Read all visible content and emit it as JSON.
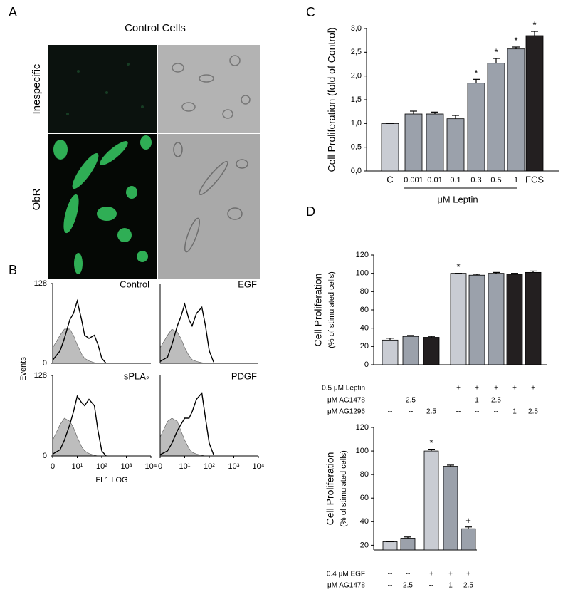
{
  "panel_a": {
    "label": "A",
    "title": "Control Cells",
    "rows": [
      "Inespecific",
      "ObR"
    ]
  },
  "panel_b": {
    "label": "B",
    "y_label": "Events",
    "x_label": "FL1 LOG"
  },
  "chart_data": [
    {
      "type": "bar",
      "panel": "C",
      "y_label": "Cell Proliferation (fold of Control)",
      "categories": [
        "C",
        "0.001",
        "0.01",
        "0.1",
        "0.3",
        "0.5",
        "1",
        "FCS"
      ],
      "values": [
        1.0,
        1.2,
        1.2,
        1.1,
        1.85,
        2.27,
        2.57,
        2.85
      ],
      "errors": [
        0,
        0.06,
        0.04,
        0.07,
        0.08,
        0.1,
        0.04,
        0.09
      ],
      "colors": [
        "#c9ccd3",
        "#9ba1ab",
        "#9ba1ab",
        "#9ba1ab",
        "#9ba1ab",
        "#9ba1ab",
        "#9ba1ab",
        "#231f20"
      ],
      "markers": [
        null,
        null,
        null,
        null,
        "*",
        "*",
        "*",
        "*"
      ],
      "group_label": "μM Leptin",
      "ylim": [
        0,
        3
      ],
      "yticks": [
        {
          "value": 0,
          "label": "0,0"
        },
        {
          "value": 0.5,
          "label": "0,5"
        },
        {
          "value": 1,
          "label": "1,0"
        },
        {
          "value": 1.5,
          "label": "1,5"
        },
        {
          "value": 2,
          "label": "2,0"
        },
        {
          "value": 2.5,
          "label": "2,5"
        },
        {
          "value": 3,
          "label": "3,0"
        }
      ]
    },
    {
      "type": "bar",
      "panel": "D",
      "y_label": "Cell Proliferation",
      "y_sublabel": "(% of stimulated cells)",
      "categories": [
        null,
        null,
        null,
        null,
        null,
        null,
        null,
        null
      ],
      "values": [
        27,
        31,
        30,
        100,
        98,
        100,
        99,
        101
      ],
      "errors": [
        2,
        1,
        1,
        0,
        1,
        1,
        1,
        1.5
      ],
      "colors": [
        "#c9ccd3",
        "#9ba1ab",
        "#231f20",
        "#c9ccd3",
        "#9ba1ab",
        "#9ba1ab",
        "#231f20",
        "#231f20"
      ],
      "markers": [
        null,
        null,
        null,
        "*",
        null,
        null,
        null,
        null
      ],
      "conditions": [
        {
          "label": "0.5 μM Leptin",
          "values": [
            "--",
            "--",
            "--",
            "+",
            "+",
            "+",
            "+",
            "+"
          ]
        },
        {
          "label": "μM AG1478",
          "values": [
            "--",
            "2.5",
            "--",
            "--",
            "1",
            "2.5",
            "--",
            "--"
          ]
        },
        {
          "label": "μM AG1296",
          "values": [
            "--",
            "--",
            "2.5",
            "--",
            "--",
            "--",
            "1",
            "2.5"
          ]
        }
      ],
      "ylim": [
        0,
        120
      ],
      "yticks": [
        0,
        20,
        40,
        60,
        80,
        100,
        120
      ]
    },
    {
      "type": "bar",
      "y_label": "Cell Proliferation",
      "y_sublabel": "(% of stimulated cells)",
      "categories": [
        null,
        null,
        null,
        null,
        null
      ],
      "values": [
        23,
        26,
        100,
        87,
        34
      ],
      "errors": [
        0,
        1,
        1.5,
        1,
        1.5
      ],
      "colors": [
        "#c9ccd3",
        "#9ba1ab",
        "#c9ccd3",
        "#9ba1ab",
        "#9ba1ab"
      ],
      "markers": [
        null,
        null,
        "*",
        null,
        "+"
      ],
      "conditions": [
        {
          "label": "0.4 μM EGF",
          "values": [
            "--",
            "--",
            "+",
            "+",
            "+"
          ]
        },
        {
          "label": "μM AG1478",
          "values": [
            "--",
            "2.5",
            "--",
            "1",
            "2.5"
          ]
        }
      ],
      "ylim": [
        16,
        120
      ],
      "yticks": [
        20,
        40,
        60,
        80,
        100,
        120
      ]
    },
    {
      "type": "line",
      "title": "Control",
      "log_x": true,
      "xlim": [
        1,
        10000
      ],
      "ylim": [
        0,
        128
      ],
      "yticks": [
        0,
        128
      ],
      "x": [
        1,
        2,
        3,
        5,
        7,
        10,
        15,
        20,
        30,
        50,
        70,
        100,
        150
      ],
      "series": [
        {
          "color": "#bdbdbd",
          "filled": true,
          "values": [
            25,
            45,
            55,
            55,
            45,
            30,
            15,
            8,
            4,
            1,
            0,
            0,
            0
          ]
        },
        {
          "color": "#000000",
          "values": [
            5,
            20,
            40,
            70,
            80,
            100,
            70,
            45,
            40,
            45,
            30,
            8,
            0
          ]
        }
      ]
    },
    {
      "type": "line",
      "title": "EGF",
      "log_x": true,
      "xlim": [
        1,
        10000
      ],
      "ylim": [
        0,
        128
      ],
      "x": [
        1,
        2,
        3,
        5,
        7,
        10,
        15,
        20,
        30,
        50,
        70,
        100,
        150
      ],
      "series": [
        {
          "color": "#bdbdbd",
          "filled": true,
          "values": [
            25,
            45,
            55,
            50,
            40,
            25,
            12,
            6,
            3,
            1,
            0,
            0,
            0
          ]
        },
        {
          "color": "#000000",
          "values": [
            3,
            10,
            30,
            60,
            75,
            95,
            70,
            60,
            80,
            90,
            60,
            20,
            2
          ]
        }
      ]
    },
    {
      "type": "line",
      "title": "sPLA₂",
      "log_x": true,
      "xlim": [
        1,
        10000
      ],
      "ylim": [
        0,
        128
      ],
      "yticks": [
        0,
        128
      ],
      "xticks": [
        {
          "value": 1,
          "label": "0"
        },
        {
          "value": 10,
          "label": "10¹"
        },
        {
          "value": 100,
          "label": "10²"
        },
        {
          "value": 1000,
          "label": "10³"
        },
        {
          "value": 10000,
          "label": "10⁴"
        }
      ],
      "x": [
        1,
        2,
        3,
        5,
        7,
        10,
        15,
        20,
        30,
        50,
        70,
        100,
        150
      ],
      "series": [
        {
          "color": "#bdbdbd",
          "filled": true,
          "values": [
            25,
            50,
            60,
            55,
            45,
            30,
            15,
            8,
            4,
            1,
            0,
            0,
            0
          ]
        },
        {
          "color": "#000000",
          "values": [
            3,
            10,
            25,
            50,
            70,
            95,
            85,
            80,
            90,
            80,
            40,
            8,
            0
          ]
        }
      ]
    },
    {
      "type": "line",
      "title": "PDGF",
      "log_x": true,
      "xlim": [
        1,
        10000
      ],
      "ylim": [
        0,
        128
      ],
      "xticks": [
        {
          "value": 1,
          "label": "0"
        },
        {
          "value": 10,
          "label": "10¹"
        },
        {
          "value": 100,
          "label": "10²"
        },
        {
          "value": 1000,
          "label": "10³"
        },
        {
          "value": 10000,
          "label": "10⁴"
        }
      ],
      "x": [
        1,
        2,
        3,
        5,
        7,
        10,
        15,
        20,
        30,
        50,
        70,
        100,
        150
      ],
      "series": [
        {
          "color": "#bdbdbd",
          "filled": true,
          "values": [
            30,
            55,
            60,
            55,
            40,
            25,
            12,
            6,
            3,
            1,
            0,
            0,
            0
          ]
        },
        {
          "color": "#000000",
          "values": [
            2,
            8,
            20,
            40,
            50,
            60,
            60,
            70,
            90,
            100,
            60,
            20,
            2
          ]
        }
      ]
    }
  ]
}
